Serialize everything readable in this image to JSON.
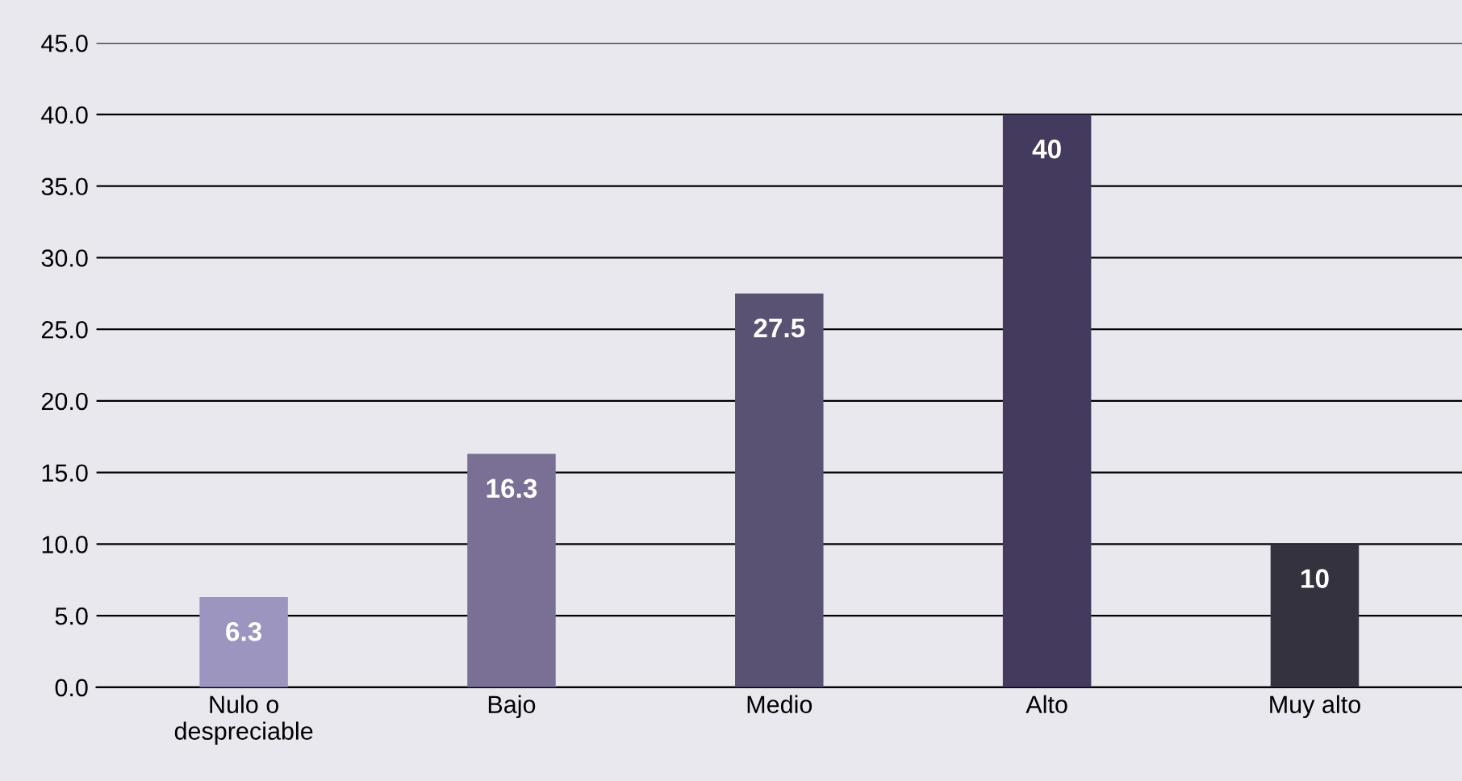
{
  "chart_data": {
    "type": "bar",
    "categories": [
      "Nulo o\ndespreciable",
      "Bajo",
      "Medio",
      "Alto",
      "Muy alto"
    ],
    "values": [
      6.3,
      16.3,
      27.5,
      40,
      10
    ],
    "colors": [
      "#9b95c0",
      "#7a7096",
      "#5a5273",
      "#433a5e",
      "#34323f"
    ],
    "ylim": [
      0,
      45
    ],
    "yticks": [
      {
        "value": 0,
        "label": "0.0"
      },
      {
        "value": 5,
        "label": "5.0"
      },
      {
        "value": 10,
        "label": "10.0"
      },
      {
        "value": 15,
        "label": "15.0"
      },
      {
        "value": 20,
        "label": "20.0"
      },
      {
        "value": 25,
        "label": "25.0"
      },
      {
        "value": 30,
        "label": "30.0"
      },
      {
        "value": 35,
        "label": "35.0"
      },
      {
        "value": 40,
        "label": "40.0"
      },
      {
        "value": 45,
        "label": "45.0"
      }
    ],
    "grid": "y",
    "data_labels": true
  }
}
